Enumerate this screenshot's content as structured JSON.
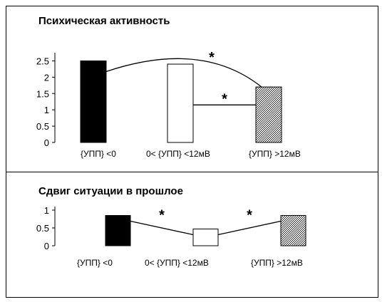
{
  "chart_data": [
    {
      "type": "bar",
      "title": "Психическая активность",
      "categories": [
        "{УПП} <0",
        "0< {УПП} <12мВ",
        "{УПП} >12мВ"
      ],
      "values": [
        2.5,
        2.4,
        1.7
      ],
      "ylim": [
        0,
        2.75
      ],
      "yticks": [
        "0",
        "0.5",
        "1",
        "1.5",
        "2",
        "2.5"
      ],
      "ytick_values": [
        0,
        0.5,
        1,
        1.5,
        2,
        2.5
      ],
      "bar_fills": [
        "#000000",
        "#ffffff",
        "hatched"
      ],
      "annotations": [
        "*",
        "*"
      ],
      "significance": [
        {
          "from": 0,
          "to": 2,
          "label": "*",
          "shape": "arc"
        },
        {
          "from": 1,
          "to": 2,
          "label": "*",
          "shape": "bracket",
          "level": 1.15
        }
      ]
    },
    {
      "type": "bar",
      "title": "Сдвиг ситуации в прошлое",
      "categories": [
        "{УПП} <0",
        "0< {УПП} <12мВ",
        "{УПП} >12мВ"
      ],
      "values": [
        0.85,
        0.47,
        0.85
      ],
      "ylim": [
        0,
        1.1
      ],
      "yticks": [
        "0",
        "0.5",
        "1"
      ],
      "ytick_values": [
        0,
        0.5,
        1
      ],
      "bar_fills": [
        "#000000",
        "#ffffff",
        "hatched"
      ],
      "annotations": [
        "*",
        "*"
      ],
      "significance": [
        {
          "from": 0,
          "to": 1,
          "label": "*",
          "shape": "line"
        },
        {
          "from": 1,
          "to": 2,
          "label": "*",
          "shape": "line"
        }
      ]
    }
  ]
}
